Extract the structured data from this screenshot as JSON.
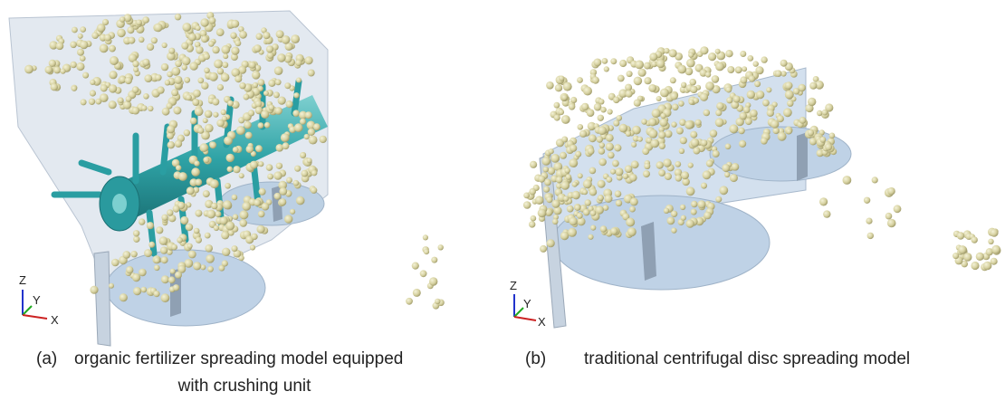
{
  "figures": [
    {
      "label": "(a)",
      "caption": [
        "organic fertilizer spreading model equipped",
        "with crushing unit"
      ],
      "axes": [
        "Z",
        "Y",
        "X"
      ]
    },
    {
      "label": "(b)",
      "caption": [
        "traditional centrifugal disc spreading model"
      ],
      "axes": [
        "Z",
        "Y",
        "X"
      ]
    }
  ]
}
